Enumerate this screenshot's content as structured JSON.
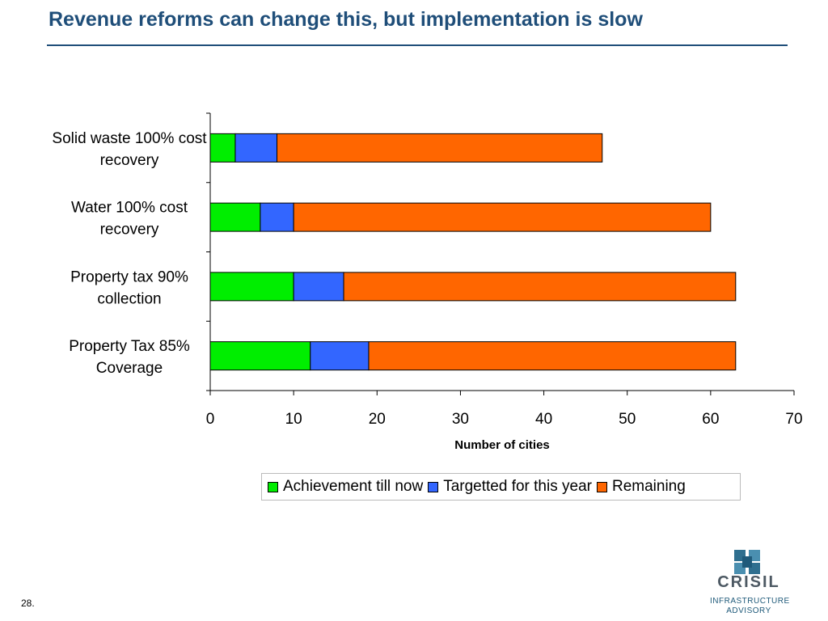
{
  "slide": {
    "title": "Revenue reforms can change this, but implementation is slow",
    "page_number": "28."
  },
  "logo": {
    "word": "CRISIL",
    "line1": "INFRASTRUCTURE",
    "line2": "ADVISORY"
  },
  "colors": {
    "title": "#1f4e79",
    "achievement": "#00ee00",
    "targeted": "#3366ff",
    "remaining": "#ff6600"
  },
  "chart_data": {
    "type": "bar",
    "orientation": "horizontal",
    "stacked": true,
    "categories": [
      "Solid waste 100% cost recovery",
      "Water 100% cost recovery",
      "Property tax 90% collection",
      "Property Tax 85% Coverage"
    ],
    "category_lines": [
      [
        "Solid waste 100% cost",
        "recovery"
      ],
      [
        "Water 100% cost",
        "recovery"
      ],
      [
        "Property tax 90%",
        "collection"
      ],
      [
        "Property Tax 85%",
        "Coverage"
      ]
    ],
    "series": [
      {
        "name": "Achievement till now",
        "color": "#00ee00",
        "values": [
          3,
          6,
          10,
          12
        ]
      },
      {
        "name": "Targetted for this year",
        "color": "#3366ff",
        "values": [
          5,
          4,
          6,
          7
        ]
      },
      {
        "name": "Remaining",
        "color": "#ff6600",
        "values": [
          39,
          50,
          47,
          44
        ]
      }
    ],
    "xlabel": "Number of cities",
    "ylabel": "",
    "xlim": [
      0,
      70
    ],
    "xticks": [
      0,
      10,
      20,
      30,
      40,
      50,
      60,
      70
    ],
    "grid": false,
    "legend_position": "bottom"
  }
}
